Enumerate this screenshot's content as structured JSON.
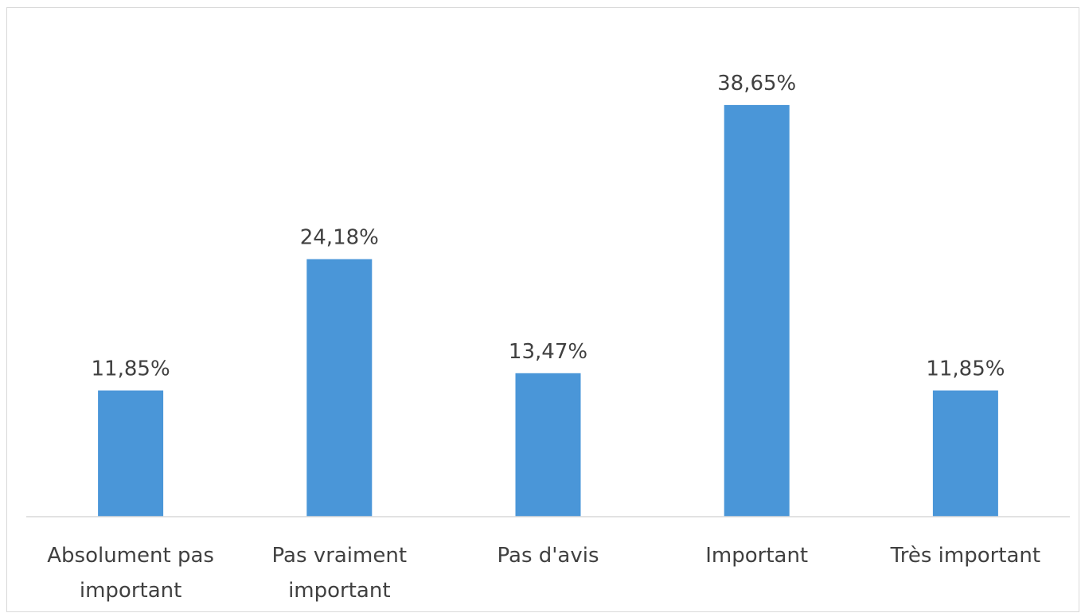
{
  "chart_data": {
    "type": "bar",
    "categories": [
      [
        "Absolument  pas",
        "important"
      ],
      [
        "Pas vraiment",
        "important"
      ],
      [
        "Pas d'avis"
      ],
      [
        "Important"
      ],
      [
        "Très important"
      ]
    ],
    "values": [
      11.85,
      24.18,
      13.47,
      38.65,
      11.85
    ],
    "value_labels": [
      "11,85%",
      "24,18%",
      "13,47%",
      "38,65%",
      "11,85%"
    ],
    "title": "",
    "xlabel": "",
    "ylabel": "",
    "ylim": [
      0,
      45
    ],
    "grid": false,
    "legend": "none",
    "bar_color": "#4a96d8",
    "label_color": "#404040",
    "axis_color": "#d9d9d9"
  }
}
